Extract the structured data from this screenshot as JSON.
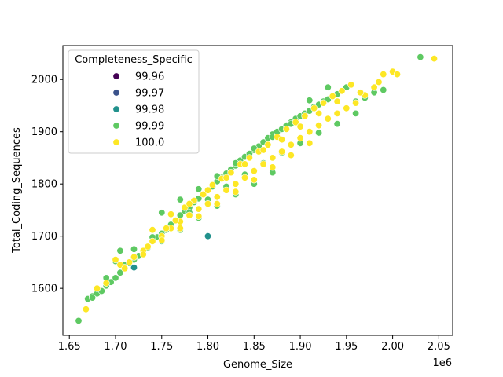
{
  "chart_data": {
    "type": "scatter",
    "title": "",
    "xlabel": "Genome_Size",
    "ylabel": "Total_Coding_Sequences",
    "x_offset_label": "1e6",
    "xlim": [
      1.643,
      2.065
    ],
    "ylim": [
      1510,
      2065
    ],
    "x_ticks": [
      1.65,
      1.7,
      1.75,
      1.8,
      1.85,
      1.9,
      1.95,
      2.0,
      2.05
    ],
    "x_tick_labels": [
      "1.65",
      "1.70",
      "1.75",
      "1.80",
      "1.85",
      "1.90",
      "1.95",
      "2.00",
      "2.05"
    ],
    "y_ticks": [
      1600,
      1700,
      1800,
      1900,
      2000
    ],
    "y_tick_labels": [
      "1600",
      "1700",
      "1800",
      "1900",
      "2000"
    ],
    "grid": false,
    "legend": {
      "title": "Completeness_Specific",
      "placement": "top-left",
      "entries": [
        {
          "label": "99.96",
          "color": "#440154"
        },
        {
          "label": "99.97",
          "color": "#3b528b"
        },
        {
          "label": "99.98",
          "color": "#21918c"
        },
        {
          "label": "99.99",
          "color": "#5ec962"
        },
        {
          "label": "100.0",
          "color": "#fde725"
        }
      ]
    },
    "series": [
      {
        "name": "99.98",
        "color": "#21918c",
        "x": [
          1.72,
          1.8
        ],
        "y": [
          1640,
          1700
        ]
      },
      {
        "name": "99.99",
        "color": "#5ec962",
        "x": [
          1.66,
          1.67,
          1.675,
          1.68,
          1.685,
          1.69,
          1.695,
          1.7,
          1.705,
          1.71,
          1.715,
          1.72,
          1.725,
          1.73,
          1.735,
          1.74,
          1.745,
          1.75,
          1.755,
          1.76,
          1.765,
          1.77,
          1.775,
          1.78,
          1.785,
          1.79,
          1.795,
          1.8,
          1.805,
          1.81,
          1.815,
          1.82,
          1.825,
          1.83,
          1.835,
          1.84,
          1.845,
          1.85,
          1.855,
          1.86,
          1.865,
          1.87,
          1.875,
          1.88,
          1.885,
          1.89,
          1.895,
          1.9,
          1.905,
          1.91,
          1.915,
          1.92,
          1.925,
          1.93,
          1.935,
          1.94,
          1.945,
          1.95,
          1.96,
          1.97,
          1.98,
          1.99,
          2.03,
          1.705,
          1.75,
          1.77,
          1.79,
          1.81,
          1.83,
          1.85,
          1.87,
          1.89,
          1.91,
          1.93,
          1.86,
          1.84,
          1.82,
          1.8,
          1.78,
          1.76,
          1.74,
          1.72,
          1.7,
          1.88,
          1.9,
          1.92,
          1.94,
          1.96,
          1.87,
          1.85,
          1.83,
          1.81,
          1.79,
          1.77,
          1.75,
          1.73,
          1.71,
          1.69,
          1.675
        ],
        "y": [
          1538,
          1580,
          1585,
          1590,
          1595,
          1605,
          1612,
          1620,
          1630,
          1640,
          1648,
          1655,
          1662,
          1670,
          1678,
          1690,
          1698,
          1705,
          1712,
          1722,
          1730,
          1740,
          1748,
          1755,
          1765,
          1772,
          1780,
          1788,
          1795,
          1805,
          1812,
          1820,
          1828,
          1835,
          1845,
          1852,
          1858,
          1865,
          1872,
          1880,
          1888,
          1895,
          1900,
          1905,
          1912,
          1918,
          1925,
          1930,
          1935,
          1940,
          1948,
          1952,
          1958,
          1962,
          1968,
          1972,
          1978,
          1985,
          1958,
          1965,
          1975,
          1980,
          2043,
          1672,
          1745,
          1770,
          1790,
          1815,
          1840,
          1868,
          1890,
          1915,
          1960,
          1985,
          1840,
          1818,
          1795,
          1770,
          1745,
          1722,
          1698,
          1675,
          1652,
          1860,
          1878,
          1898,
          1915,
          1935,
          1822,
          1800,
          1780,
          1758,
          1735,
          1712,
          1690,
          1668,
          1645,
          1620,
          1582
        ]
      },
      {
        "name": "100.0",
        "color": "#fde725",
        "x": [
          1.668,
          1.68,
          1.69,
          1.7,
          1.71,
          1.72,
          1.73,
          1.74,
          1.75,
          1.76,
          1.77,
          1.78,
          1.79,
          1.8,
          1.81,
          1.82,
          1.83,
          1.84,
          1.85,
          1.86,
          1.87,
          1.88,
          1.89,
          1.9,
          1.91,
          1.92,
          1.93,
          1.94,
          1.95,
          1.96,
          1.97,
          1.98,
          1.99,
          2.0,
          2.005,
          2.045,
          1.705,
          1.715,
          1.735,
          1.755,
          1.765,
          1.775,
          1.785,
          1.795,
          1.805,
          1.815,
          1.825,
          1.835,
          1.845,
          1.855,
          1.865,
          1.875,
          1.885,
          1.895,
          1.905,
          1.915,
          1.925,
          1.935,
          1.945,
          1.955,
          1.74,
          1.76,
          1.78,
          1.8,
          1.82,
          1.84,
          1.86,
          1.88,
          1.9,
          1.92,
          1.94,
          1.91,
          1.89,
          1.87,
          1.85,
          1.83,
          1.81,
          1.79,
          1.77,
          1.75,
          1.73,
          1.71,
          1.985,
          1.965
        ],
        "y": [
          1560,
          1600,
          1610,
          1655,
          1640,
          1660,
          1672,
          1690,
          1700,
          1715,
          1728,
          1740,
          1752,
          1762,
          1775,
          1788,
          1800,
          1812,
          1825,
          1838,
          1850,
          1862,
          1875,
          1888,
          1900,
          1912,
          1925,
          1935,
          1945,
          1955,
          1970,
          1985,
          2010,
          2015,
          2010,
          2040,
          1645,
          1650,
          1680,
          1715,
          1730,
          1755,
          1768,
          1780,
          1798,
          1810,
          1822,
          1838,
          1850,
          1862,
          1875,
          1890,
          1905,
          1918,
          1930,
          1945,
          1955,
          1968,
          1978,
          1990,
          1712,
          1742,
          1762,
          1788,
          1812,
          1838,
          1865,
          1885,
          1910,
          1935,
          1958,
          1878,
          1855,
          1832,
          1808,
          1785,
          1762,
          1738,
          1715,
          1692,
          1665,
          1638,
          1995,
          1975
        ]
      }
    ]
  }
}
